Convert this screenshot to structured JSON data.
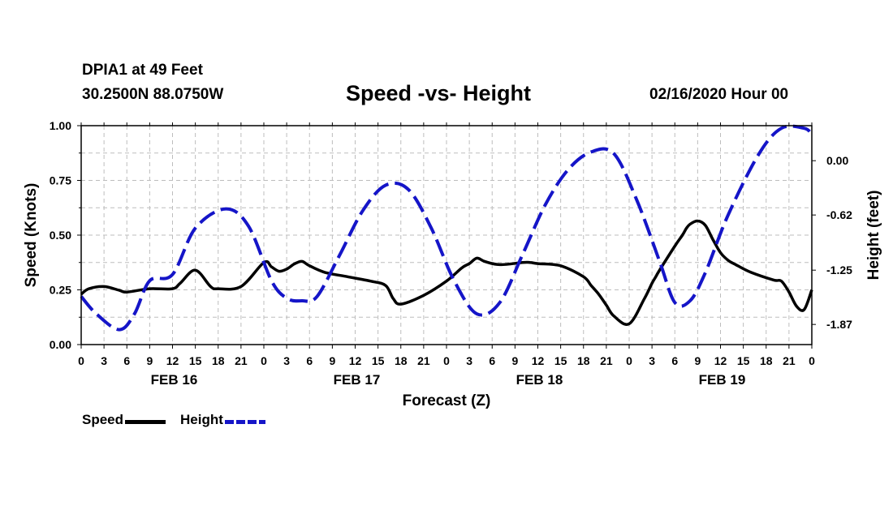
{
  "header": {
    "station": "DPIA1 at 49 Feet",
    "coords": "30.2500N 88.0750W",
    "title": "Speed -vs- Height",
    "runtime": "02/16/2020 Hour 00"
  },
  "legend": {
    "speed_label": "Speed",
    "height_label": "Height"
  },
  "colors": {
    "speed": "#000000",
    "height": "#1515c8",
    "grid": "#bdbdbd"
  },
  "chart_data": {
    "type": "line",
    "title": "Speed -vs- Height",
    "xlabel": "Forecast (Z)",
    "ylabel": "Speed (Knots)",
    "y2label": "Height (feet)",
    "xlim": [
      0,
      96
    ],
    "ylim": [
      0,
      1
    ],
    "y2lim": [
      -2.1,
      0.4
    ],
    "yticks": [
      "0.00",
      "0.25",
      "0.50",
      "0.75",
      "1.00"
    ],
    "y2ticks": [
      {
        "value": 0.0,
        "label": "0.00"
      },
      {
        "value": -0.62,
        "label": "-0.62"
      },
      {
        "value": -1.25,
        "label": "-1.25"
      },
      {
        "value": -1.87,
        "label": "-1.87"
      }
    ],
    "xticks": [
      "0",
      "3",
      "6",
      "9",
      "12",
      "15",
      "18",
      "21",
      "0",
      "3",
      "6",
      "9",
      "12",
      "15",
      "18",
      "21",
      "0",
      "3",
      "6",
      "9",
      "12",
      "15",
      "18",
      "21",
      "0",
      "3",
      "6",
      "9",
      "12",
      "15",
      "18",
      "21",
      "0"
    ],
    "day_labels": [
      {
        "hour": 12,
        "label": "FEB 16"
      },
      {
        "hour": 36,
        "label": "FEB 17"
      },
      {
        "hour": 60,
        "label": "FEB 18"
      },
      {
        "hour": 84,
        "label": "FEB 19"
      }
    ],
    "series": [
      {
        "name": "Speed",
        "axis": "left",
        "style": "solid",
        "x": [
          0,
          1,
          3,
          5,
          6,
          9,
          12,
          13,
          15,
          17,
          18,
          21,
          24,
          25,
          26,
          27,
          28,
          29,
          30,
          32,
          35,
          38,
          40,
          41,
          42,
          45,
          48,
          50,
          51,
          52,
          53,
          55,
          58,
          59,
          60,
          63,
          66,
          67,
          68,
          69,
          70,
          72,
          74,
          75,
          75.5,
          76,
          78,
          79,
          79.5,
          80,
          81,
          82,
          83,
          84,
          85,
          86,
          88,
          91,
          92,
          93,
          94,
          95,
          96
        ],
        "y": [
          0.23,
          0.255,
          0.265,
          0.248,
          0.24,
          0.255,
          0.255,
          0.28,
          0.34,
          0.265,
          0.255,
          0.265,
          0.375,
          0.355,
          0.335,
          0.345,
          0.368,
          0.38,
          0.36,
          0.33,
          0.31,
          0.29,
          0.27,
          0.21,
          0.185,
          0.225,
          0.29,
          0.35,
          0.37,
          0.395,
          0.38,
          0.365,
          0.375,
          0.375,
          0.37,
          0.36,
          0.31,
          0.27,
          0.23,
          0.18,
          0.13,
          0.095,
          0.21,
          0.28,
          0.31,
          0.34,
          0.45,
          0.5,
          0.53,
          0.55,
          0.565,
          0.545,
          0.48,
          0.42,
          0.385,
          0.365,
          0.33,
          0.295,
          0.29,
          0.24,
          0.175,
          0.16,
          0.25
        ]
      },
      {
        "name": "Height",
        "axis": "right",
        "style": "dashed",
        "x": [
          0,
          2,
          5,
          7,
          9,
          12,
          15,
          19,
          22,
          25,
          27,
          29,
          31,
          34,
          37,
          40,
          43,
          46,
          49,
          52,
          55,
          58,
          61,
          64,
          67,
          70,
          73,
          76,
          78,
          80,
          82,
          85,
          89,
          92,
          95,
          96
        ],
        "y": [
          -1.55,
          -1.75,
          -1.93,
          -1.75,
          -1.37,
          -1.3,
          -0.77,
          -0.55,
          -0.75,
          -1.37,
          -1.57,
          -1.6,
          -1.55,
          -1.07,
          -0.57,
          -0.28,
          -0.33,
          -0.77,
          -1.37,
          -1.75,
          -1.62,
          -1.07,
          -0.5,
          -0.1,
          0.1,
          0.08,
          -0.45,
          -1.15,
          -1.62,
          -1.6,
          -1.28,
          -0.62,
          0.07,
          0.37,
          0.37,
          0.3
        ]
      }
    ]
  }
}
